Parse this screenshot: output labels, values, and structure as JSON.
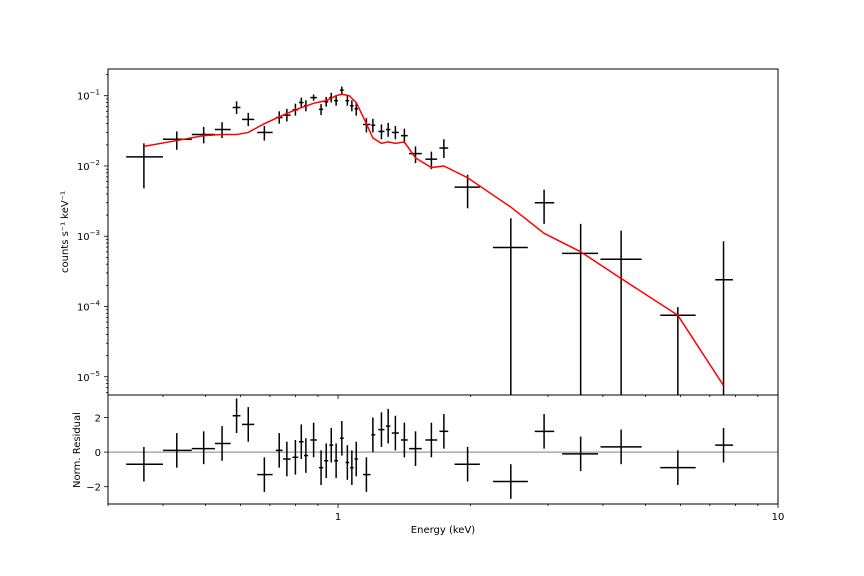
{
  "chart_data": [
    {
      "type": "scatter",
      "panel": "spectrum",
      "xscale": "log",
      "yscale": "log",
      "xlim": [
        0.3,
        10
      ],
      "ylim": [
        5.5e-06,
        0.24
      ],
      "xlabel": "",
      "ylabel": "counts s⁻¹ keV⁻¹",
      "y_ticks": [
        {
          "value": 0.1,
          "base": "10",
          "exp": "−1"
        },
        {
          "value": 0.01,
          "base": "10",
          "exp": "−2"
        },
        {
          "value": 0.001,
          "base": "10",
          "exp": "−3"
        },
        {
          "value": 0.0001,
          "base": "10",
          "exp": "−4"
        },
        {
          "value": 1e-05,
          "base": "10",
          "exp": "−5"
        }
      ],
      "colors": {
        "data": "#000000",
        "model": "#ff0000"
      },
      "series": [
        {
          "kind": "data-with-errorbars",
          "points": [
            {
              "x": 0.362,
              "xlo": 0.33,
              "xhi": 0.4,
              "y": 0.0135,
              "ylo": 0.0048,
              "yhi": 0.021
            },
            {
              "x": 0.43,
              "xlo": 0.4,
              "xhi": 0.465,
              "y": 0.024,
              "ylo": 0.017,
              "yhi": 0.031
            },
            {
              "x": 0.495,
              "xlo": 0.465,
              "xhi": 0.525,
              "y": 0.028,
              "ylo": 0.021,
              "yhi": 0.036
            },
            {
              "x": 0.545,
              "xlo": 0.525,
              "xhi": 0.57,
              "y": 0.033,
              "ylo": 0.025,
              "yhi": 0.042
            },
            {
              "x": 0.588,
              "xlo": 0.576,
              "xhi": 0.6,
              "y": 0.068,
              "ylo": 0.055,
              "yhi": 0.083
            },
            {
              "x": 0.625,
              "xlo": 0.605,
              "xhi": 0.645,
              "y": 0.046,
              "ylo": 0.037,
              "yhi": 0.057
            },
            {
              "x": 0.68,
              "xlo": 0.655,
              "xhi": 0.71,
              "y": 0.03,
              "ylo": 0.023,
              "yhi": 0.037
            },
            {
              "x": 0.735,
              "xlo": 0.722,
              "xhi": 0.748,
              "y": 0.049,
              "ylo": 0.04,
              "yhi": 0.06
            },
            {
              "x": 0.765,
              "xlo": 0.75,
              "xhi": 0.78,
              "y": 0.053,
              "ylo": 0.043,
              "yhi": 0.065
            },
            {
              "x": 0.8,
              "xlo": 0.788,
              "xhi": 0.812,
              "y": 0.063,
              "ylo": 0.052,
              "yhi": 0.077
            },
            {
              "x": 0.825,
              "xlo": 0.815,
              "xhi": 0.835,
              "y": 0.08,
              "ylo": 0.068,
              "yhi": 0.094
            },
            {
              "x": 0.845,
              "xlo": 0.837,
              "xhi": 0.855,
              "y": 0.072,
              "ylo": 0.06,
              "yhi": 0.086
            },
            {
              "x": 0.88,
              "xlo": 0.865,
              "xhi": 0.895,
              "y": 0.094,
              "ylo": 0.085,
              "yhi": 0.104
            },
            {
              "x": 0.915,
              "xlo": 0.905,
              "xhi": 0.925,
              "y": 0.064,
              "ylo": 0.053,
              "yhi": 0.076
            },
            {
              "x": 0.94,
              "xlo": 0.93,
              "xhi": 0.95,
              "y": 0.082,
              "ylo": 0.07,
              "yhi": 0.096
            },
            {
              "x": 0.965,
              "xlo": 0.955,
              "xhi": 0.975,
              "y": 0.094,
              "ylo": 0.08,
              "yhi": 0.11
            },
            {
              "x": 0.99,
              "xlo": 0.98,
              "xhi": 1.0,
              "y": 0.085,
              "ylo": 0.072,
              "yhi": 0.1
            },
            {
              "x": 1.02,
              "xlo": 1.01,
              "xhi": 1.03,
              "y": 0.12,
              "ylo": 0.105,
              "yhi": 0.135
            },
            {
              "x": 1.05,
              "xlo": 1.04,
              "xhi": 1.06,
              "y": 0.085,
              "ylo": 0.072,
              "yhi": 0.1
            },
            {
              "x": 1.075,
              "xlo": 1.065,
              "xhi": 1.085,
              "y": 0.072,
              "ylo": 0.06,
              "yhi": 0.086
            },
            {
              "x": 1.1,
              "xlo": 1.09,
              "xhi": 1.11,
              "y": 0.065,
              "ylo": 0.052,
              "yhi": 0.08
            },
            {
              "x": 1.16,
              "xlo": 1.14,
              "xhi": 1.185,
              "y": 0.039,
              "ylo": 0.03,
              "yhi": 0.048
            },
            {
              "x": 1.2,
              "xlo": 1.19,
              "xhi": 1.215,
              "y": 0.038,
              "ylo": 0.03,
              "yhi": 0.047
            },
            {
              "x": 1.255,
              "xlo": 1.235,
              "xhi": 1.275,
              "y": 0.031,
              "ylo": 0.024,
              "yhi": 0.039
            },
            {
              "x": 1.3,
              "xlo": 1.285,
              "xhi": 1.315,
              "y": 0.033,
              "ylo": 0.026,
              "yhi": 0.041
            },
            {
              "x": 1.35,
              "xlo": 1.325,
              "xhi": 1.375,
              "y": 0.03,
              "ylo": 0.024,
              "yhi": 0.037
            },
            {
              "x": 1.415,
              "xlo": 1.39,
              "xhi": 1.44,
              "y": 0.027,
              "ylo": 0.021,
              "yhi": 0.034
            },
            {
              "x": 1.5,
              "xlo": 1.45,
              "xhi": 1.55,
              "y": 0.015,
              "ylo": 0.011,
              "yhi": 0.019
            },
            {
              "x": 1.63,
              "xlo": 1.58,
              "xhi": 1.68,
              "y": 0.0125,
              "ylo": 0.009,
              "yhi": 0.016
            },
            {
              "x": 1.74,
              "xlo": 1.7,
              "xhi": 1.78,
              "y": 0.018,
              "ylo": 0.013,
              "yhi": 0.024
            },
            {
              "x": 1.97,
              "xlo": 1.84,
              "xhi": 2.1,
              "y": 0.005,
              "ylo": 0.0025,
              "yhi": 0.0075
            },
            {
              "x": 2.47,
              "xlo": 2.25,
              "xhi": 2.7,
              "y": 0.00069,
              "ylo": 5.5e-06,
              "yhi": 0.0018
            },
            {
              "x": 2.94,
              "xlo": 2.8,
              "xhi": 3.1,
              "y": 0.003,
              "ylo": 0.0015,
              "yhi": 0.0046
            },
            {
              "x": 3.56,
              "xlo": 3.23,
              "xhi": 3.9,
              "y": 0.00057,
              "ylo": 5.5e-06,
              "yhi": 0.0015
            },
            {
              "x": 4.4,
              "xlo": 3.95,
              "xhi": 4.9,
              "y": 0.00047,
              "ylo": 5.5e-06,
              "yhi": 0.0012
            },
            {
              "x": 5.92,
              "xlo": 5.4,
              "xhi": 6.5,
              "y": 7.5e-05,
              "ylo": 5.5e-06,
              "yhi": 9.8e-05
            },
            {
              "x": 7.52,
              "xlo": 7.2,
              "xhi": 7.9,
              "y": 0.00024,
              "ylo": 5.5e-06,
              "yhi": 0.00085
            }
          ]
        },
        {
          "kind": "model-line",
          "x": [
            0.362,
            0.43,
            0.495,
            0.545,
            0.588,
            0.625,
            0.68,
            0.735,
            0.8,
            0.88,
            0.94,
            0.99,
            1.02,
            1.06,
            1.1,
            1.16,
            1.2,
            1.255,
            1.3,
            1.35,
            1.415,
            1.5,
            1.63,
            1.74,
            1.97,
            2.47,
            2.94,
            3.56,
            4.4,
            5.92,
            7.52
          ],
          "y": [
            0.019,
            0.023,
            0.027,
            0.028,
            0.028,
            0.03,
            0.04,
            0.05,
            0.063,
            0.078,
            0.085,
            0.1,
            0.105,
            0.1,
            0.08,
            0.04,
            0.025,
            0.021,
            0.022,
            0.021,
            0.022,
            0.013,
            0.0095,
            0.01,
            0.0068,
            0.0026,
            0.0011,
            0.0006,
            0.00025,
            7.5e-05,
            7.5e-06
          ]
        }
      ]
    },
    {
      "type": "scatter",
      "panel": "residuals",
      "xscale": "log",
      "xlim": [
        0.3,
        10
      ],
      "ylim": [
        -3,
        3.3
      ],
      "xlabel": "Energy (keV)",
      "ylabel": "Norm. Residual",
      "x_ticks": [
        {
          "value": 1,
          "label": "1"
        },
        {
          "value": 10,
          "label": "10"
        }
      ],
      "y_ticks": [
        {
          "value": 2,
          "label": "2"
        },
        {
          "value": 0,
          "label": "0"
        },
        {
          "value": -2,
          "label": "−2"
        }
      ],
      "reference_line": 0,
      "colors": {
        "data": "#000000",
        "reference": "#808080"
      },
      "series": [
        {
          "kind": "data-with-errorbars",
          "points": [
            {
              "x": 0.362,
              "xlo": 0.33,
              "xhi": 0.4,
              "y": -0.7,
              "ylo": -1.7,
              "yhi": 0.3
            },
            {
              "x": 0.43,
              "xlo": 0.4,
              "xhi": 0.465,
              "y": 0.1,
              "ylo": -0.9,
              "yhi": 1.1
            },
            {
              "x": 0.495,
              "xlo": 0.465,
              "xhi": 0.525,
              "y": 0.2,
              "ylo": -0.7,
              "yhi": 1.2
            },
            {
              "x": 0.545,
              "xlo": 0.525,
              "xhi": 0.57,
              "y": 0.5,
              "ylo": -0.5,
              "yhi": 1.5
            },
            {
              "x": 0.588,
              "xlo": 0.576,
              "xhi": 0.6,
              "y": 2.1,
              "ylo": 1.1,
              "yhi": 3.1
            },
            {
              "x": 0.625,
              "xlo": 0.605,
              "xhi": 0.645,
              "y": 1.6,
              "ylo": 0.6,
              "yhi": 2.6
            },
            {
              "x": 0.68,
              "xlo": 0.655,
              "xhi": 0.71,
              "y": -1.3,
              "ylo": -2.3,
              "yhi": -0.3
            },
            {
              "x": 0.735,
              "xlo": 0.722,
              "xhi": 0.748,
              "y": 0.1,
              "ylo": -0.9,
              "yhi": 1.1
            },
            {
              "x": 0.765,
              "xlo": 0.75,
              "xhi": 0.78,
              "y": -0.4,
              "ylo": -1.4,
              "yhi": 0.6
            },
            {
              "x": 0.8,
              "xlo": 0.788,
              "xhi": 0.812,
              "y": -0.3,
              "ylo": -1.3,
              "yhi": 0.7
            },
            {
              "x": 0.825,
              "xlo": 0.815,
              "xhi": 0.835,
              "y": 0.6,
              "ylo": -0.4,
              "yhi": 1.6
            },
            {
              "x": 0.845,
              "xlo": 0.837,
              "xhi": 0.855,
              "y": -0.2,
              "ylo": -1.2,
              "yhi": 0.8
            },
            {
              "x": 0.88,
              "xlo": 0.865,
              "xhi": 0.895,
              "y": 0.7,
              "ylo": -0.3,
              "yhi": 1.7
            },
            {
              "x": 0.915,
              "xlo": 0.905,
              "xhi": 0.925,
              "y": -0.9,
              "ylo": -1.9,
              "yhi": 0.1
            },
            {
              "x": 0.94,
              "xlo": 0.93,
              "xhi": 0.95,
              "y": -0.5,
              "ylo": -1.5,
              "yhi": 0.5
            },
            {
              "x": 0.965,
              "xlo": 0.955,
              "xhi": 0.975,
              "y": 0.4,
              "ylo": -0.6,
              "yhi": 1.4
            },
            {
              "x": 0.99,
              "xlo": 0.98,
              "xhi": 1.0,
              "y": -0.5,
              "ylo": -1.5,
              "yhi": 0.5
            },
            {
              "x": 1.02,
              "xlo": 1.01,
              "xhi": 1.03,
              "y": 0.8,
              "ylo": -0.2,
              "yhi": 1.8
            },
            {
              "x": 1.05,
              "xlo": 1.04,
              "xhi": 1.06,
              "y": -0.6,
              "ylo": -1.6,
              "yhi": 0.4
            },
            {
              "x": 1.075,
              "xlo": 1.065,
              "xhi": 1.085,
              "y": -0.9,
              "ylo": -1.9,
              "yhi": 0.1
            },
            {
              "x": 1.1,
              "xlo": 1.09,
              "xhi": 1.11,
              "y": -0.4,
              "ylo": -1.4,
              "yhi": 0.6
            },
            {
              "x": 1.16,
              "xlo": 1.14,
              "xhi": 1.185,
              "y": -1.3,
              "ylo": -2.3,
              "yhi": -0.3
            },
            {
              "x": 1.2,
              "xlo": 1.19,
              "xhi": 1.215,
              "y": 1.0,
              "ylo": 0.0,
              "yhi": 2.0
            },
            {
              "x": 1.255,
              "xlo": 1.235,
              "xhi": 1.275,
              "y": 1.3,
              "ylo": 0.3,
              "yhi": 2.3
            },
            {
              "x": 1.3,
              "xlo": 1.285,
              "xhi": 1.315,
              "y": 1.5,
              "ylo": 0.5,
              "yhi": 2.5
            },
            {
              "x": 1.35,
              "xlo": 1.325,
              "xhi": 1.375,
              "y": 1.1,
              "ylo": 0.1,
              "yhi": 2.1
            },
            {
              "x": 1.415,
              "xlo": 1.39,
              "xhi": 1.44,
              "y": 0.7,
              "ylo": -0.3,
              "yhi": 1.7
            },
            {
              "x": 1.5,
              "xlo": 1.45,
              "xhi": 1.55,
              "y": 0.2,
              "ylo": -0.8,
              "yhi": 1.2
            },
            {
              "x": 1.63,
              "xlo": 1.58,
              "xhi": 1.68,
              "y": 0.7,
              "ylo": -0.3,
              "yhi": 1.7
            },
            {
              "x": 1.74,
              "xlo": 1.7,
              "xhi": 1.78,
              "y": 1.2,
              "ylo": 0.2,
              "yhi": 2.2
            },
            {
              "x": 1.97,
              "xlo": 1.84,
              "xhi": 2.1,
              "y": -0.7,
              "ylo": -1.7,
              "yhi": 0.3
            },
            {
              "x": 2.47,
              "xlo": 2.25,
              "xhi": 2.7,
              "y": -1.7,
              "ylo": -2.7,
              "yhi": -0.7
            },
            {
              "x": 2.94,
              "xlo": 2.8,
              "xhi": 3.1,
              "y": 1.2,
              "ylo": 0.2,
              "yhi": 2.2
            },
            {
              "x": 3.56,
              "xlo": 3.23,
              "xhi": 3.9,
              "y": -0.1,
              "ylo": -1.1,
              "yhi": 0.9
            },
            {
              "x": 4.4,
              "xlo": 3.95,
              "xhi": 4.9,
              "y": 0.3,
              "ylo": -0.7,
              "yhi": 1.3
            },
            {
              "x": 5.92,
              "xlo": 5.4,
              "xhi": 6.5,
              "y": -0.9,
              "ylo": -1.9,
              "yhi": 0.1
            },
            {
              "x": 7.52,
              "xlo": 7.2,
              "xhi": 7.9,
              "y": 0.4,
              "ylo": -0.6,
              "yhi": 1.4
            }
          ]
        }
      ]
    }
  ]
}
